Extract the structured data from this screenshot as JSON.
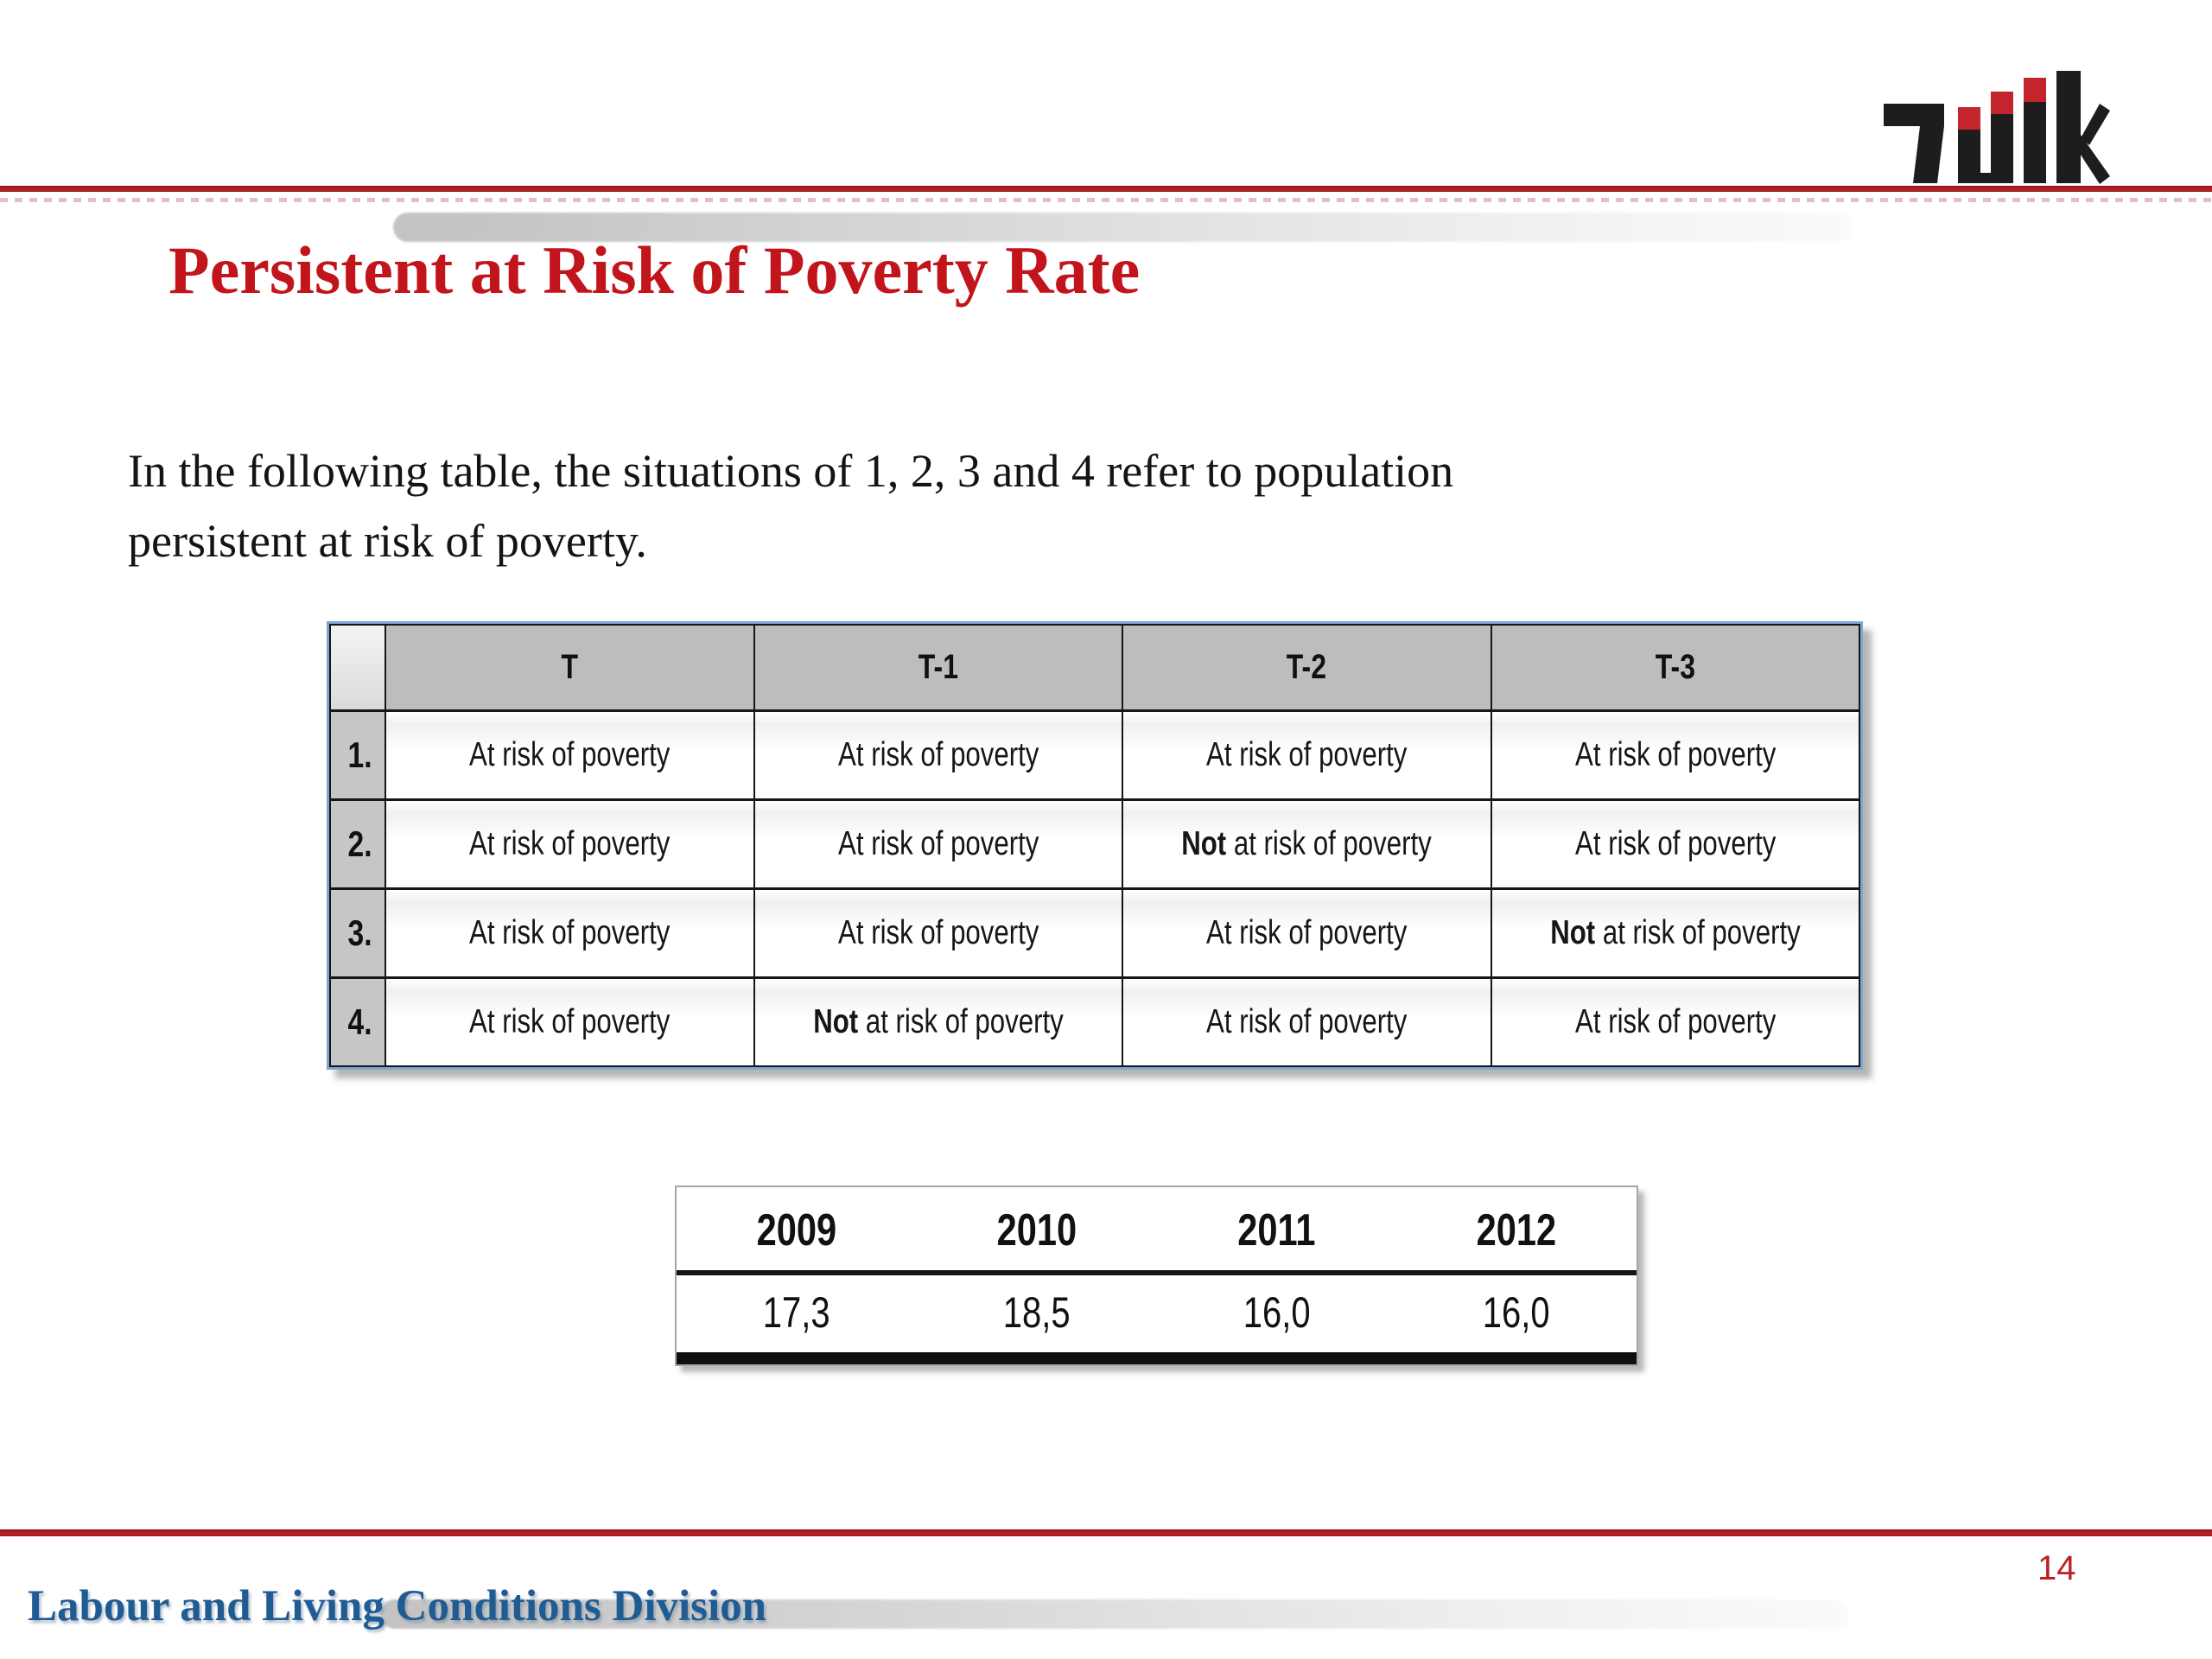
{
  "slide": {
    "title": "Persistent at Risk of Poverty Rate",
    "body_line1": "In the following table, the situations of 1, 2, 3 and 4 refer to population",
    "body_line2": "persistent at risk of poverty.",
    "footer_text": "Labour and Living Conditions Division",
    "page_number": "14"
  },
  "situation_table": {
    "column_headers": [
      "T",
      "T-1",
      "T-2",
      "T-3"
    ],
    "bold_prefix": "Not",
    "rows": [
      {
        "label": "1.",
        "cells": [
          "At risk of poverty",
          "At risk of poverty",
          "At risk of poverty",
          "At risk of poverty"
        ]
      },
      {
        "label": "2.",
        "cells": [
          "At risk of poverty",
          "At risk of poverty",
          "Not at risk of poverty",
          "At risk of poverty"
        ]
      },
      {
        "label": "3.",
        "cells": [
          "At risk of poverty",
          "At risk of poverty",
          "At risk of poverty",
          "Not at risk of poverty"
        ]
      },
      {
        "label": "4.",
        "cells": [
          "At risk of poverty",
          "Not at risk of poverty",
          "At risk of poverty",
          "At risk of poverty"
        ]
      }
    ]
  },
  "poverty_rate_table": {
    "years": [
      "2009",
      "2010",
      "2011",
      "2012"
    ],
    "values": [
      "17,3",
      "18,5",
      "16,0",
      "16,0"
    ]
  },
  "colors": {
    "accent_red": "#C2141B",
    "rule_red": "#A81E22",
    "footer_blue": "#1F5C94",
    "page_number_red": "#BE1E24",
    "table_frame_blue": "#7FA5CF",
    "header_cell_gray": "#BDBDBD",
    "label_cell_gray": "#C6C6C6",
    "logo_red": "#C4242B",
    "logo_black": "#1D1D1D"
  }
}
